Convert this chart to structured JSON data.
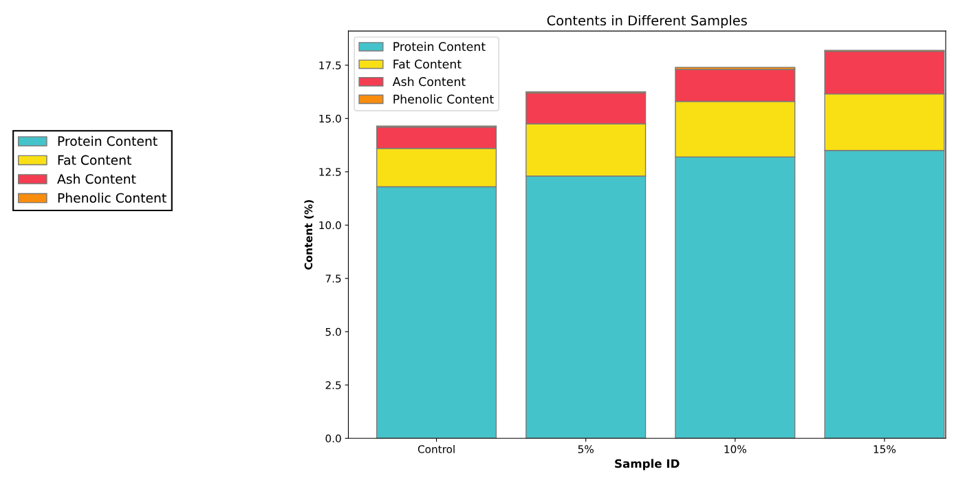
{
  "chart_data": {
    "type": "bar",
    "title": "Contents in Different Samples",
    "xlabel": "Sample ID",
    "ylabel": "Content (%)",
    "categories": [
      "Control",
      "5%",
      "10%",
      "15%"
    ],
    "stacked": true,
    "series": [
      {
        "name": "Protein Content",
        "color": "#45c3ca",
        "values": [
          11.8,
          12.3,
          13.2,
          13.5
        ]
      },
      {
        "name": "Fat Content",
        "color": "#f9e015",
        "values": [
          1.8,
          2.45,
          2.6,
          2.65
        ]
      },
      {
        "name": "Ash Content",
        "color": "#f43d50",
        "values": [
          1.0,
          1.45,
          1.5,
          2.0
        ]
      },
      {
        "name": "Phenolic Content",
        "color": "#f88d0e",
        "values": [
          0.05,
          0.05,
          0.1,
          0.05
        ]
      }
    ],
    "ylim": [
      0,
      19.1
    ],
    "yticks": [
      {
        "value": 0,
        "label": "0.0"
      },
      2.5,
      {
        "value": 5,
        "label": "5.0"
      },
      7.5,
      {
        "value": 10,
        "label": "10.0"
      },
      12.5,
      {
        "value": 15,
        "label": "15.0"
      },
      17.5
    ],
    "grid": false,
    "legend": [
      "top left",
      "left"
    ]
  }
}
